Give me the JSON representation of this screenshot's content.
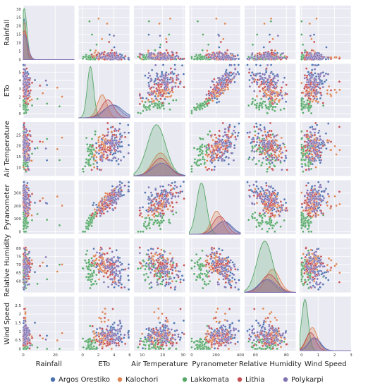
{
  "chart_data": {
    "type": "scatter",
    "kind": "pairplot",
    "diagonal_kind": "kde",
    "grid": true,
    "legend_position": "bottom",
    "variables": [
      {
        "name": "Rainfall",
        "range": [
          0,
          32
        ],
        "ticks": [
          0,
          20
        ],
        "ytick_labels": [
          "0",
          "5",
          "10",
          "15",
          "20",
          "25",
          "30"
        ],
        "yticks": [
          0,
          5,
          10,
          15,
          20,
          25,
          30
        ]
      },
      {
        "name": "ETo",
        "range": [
          -0.5,
          6
        ],
        "ticks": [
          0,
          2,
          4,
          6
        ],
        "yticks": [
          0,
          1,
          2,
          3,
          4,
          5
        ]
      },
      {
        "name": "Air Temperature",
        "range": [
          6,
          31
        ],
        "ticks": [
          10,
          20,
          30
        ],
        "yticks": [
          10,
          15,
          20,
          25
        ]
      },
      {
        "name": "Pyranometer",
        "range": [
          -20,
          400
        ],
        "ticks": [
          0,
          200,
          400
        ],
        "yticks": [
          0,
          100,
          200,
          300
        ]
      },
      {
        "name": "Relative Humidity",
        "range": [
          53,
          86
        ],
        "ticks": [
          60,
          80
        ],
        "yticks": [
          60,
          65,
          70,
          75,
          80
        ]
      },
      {
        "name": "Wind Speed",
        "range": [
          -0.1,
          3
        ],
        "ticks": [
          0,
          1,
          2,
          3
        ],
        "yticks": [
          0.0,
          0.5,
          1.0,
          1.5,
          2.0,
          2.5
        ]
      }
    ],
    "series": [
      {
        "name": "Argos Orestiko",
        "color": "#4c72b0",
        "means": [
          1.5,
          3.9,
          19.5,
          265,
          67,
          0.8
        ],
        "sds": [
          2.5,
          1.2,
          4.8,
          65,
          5,
          0.35
        ],
        "density_peak": 0.25
      },
      {
        "name": "Kalochori",
        "color": "#dd8452",
        "means": [
          2.0,
          2.5,
          19.0,
          205,
          71,
          0.65
        ],
        "sds": [
          3.0,
          0.6,
          4.0,
          45,
          4.5,
          0.3
        ],
        "density_peak": 0.45
      },
      {
        "name": "Lakkomata",
        "color": "#55a868",
        "means": [
          1.0,
          1.0,
          17.0,
          80,
          66,
          0.2
        ],
        "sds": [
          2.0,
          0.4,
          4.5,
          40,
          5.0,
          0.2
        ],
        "density_peak": 1.0
      },
      {
        "name": "Lithia",
        "color": "#c44e52",
        "means": [
          2.5,
          3.2,
          19.0,
          230,
          69,
          0.55
        ],
        "sds": [
          4.0,
          0.8,
          4.0,
          55,
          5.0,
          0.3
        ],
        "density_peak": 0.35
      },
      {
        "name": "Polykarpi",
        "color": "#8172b3",
        "means": [
          2.0,
          3.8,
          19.5,
          260,
          68,
          0.75
        ],
        "sds": [
          3.0,
          1.0,
          4.5,
          60,
          5.5,
          0.35
        ],
        "density_peak": 0.25
      }
    ]
  }
}
